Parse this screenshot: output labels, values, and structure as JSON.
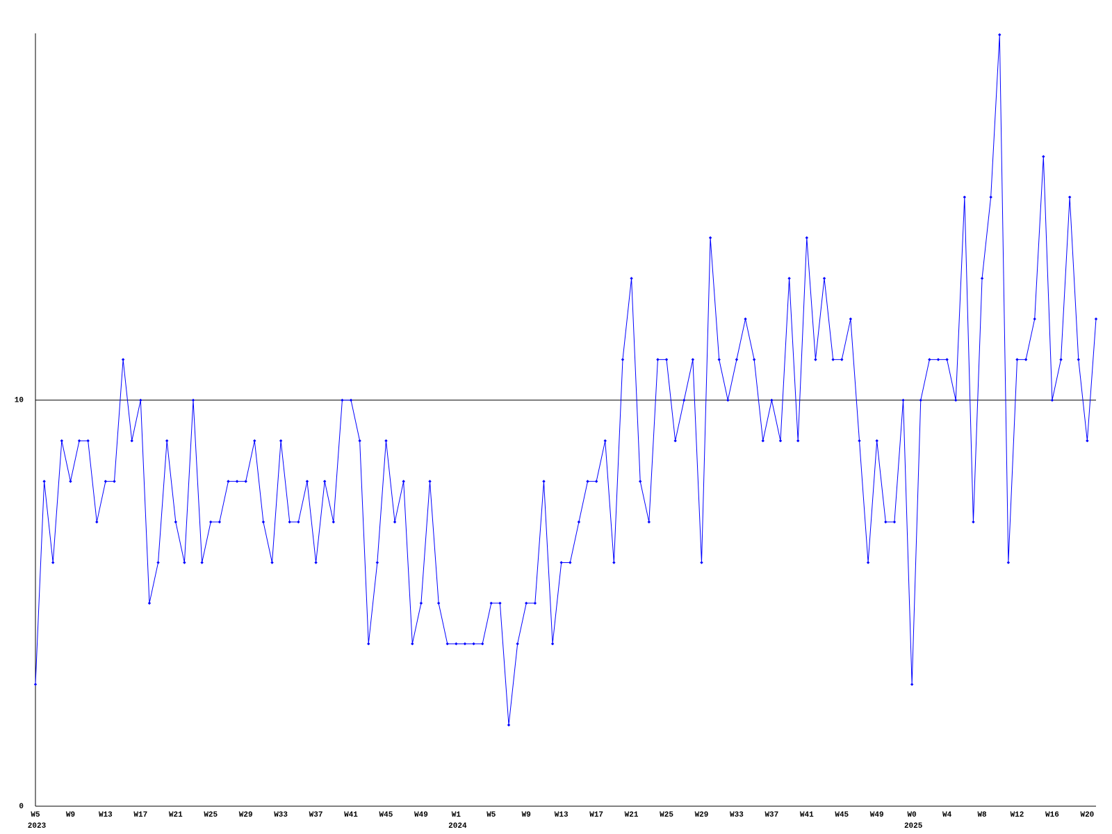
{
  "chart_data": {
    "type": "line",
    "color": "#0000ff",
    "categories": [
      "W5",
      null,
      null,
      null,
      "W9",
      null,
      null,
      null,
      "W13",
      null,
      null,
      null,
      "W17",
      null,
      null,
      null,
      "W21",
      null,
      null,
      null,
      "W25",
      null,
      null,
      null,
      "W29",
      null,
      null,
      null,
      "W33",
      null,
      null,
      null,
      "W37",
      null,
      null,
      null,
      "W41",
      null,
      null,
      null,
      "W45",
      null,
      null,
      null,
      "W49",
      null,
      null,
      null,
      "W1",
      null,
      null,
      null,
      "W5",
      null,
      null,
      null,
      "W9",
      null,
      null,
      null,
      "W13",
      null,
      null,
      null,
      "W17",
      null,
      null,
      null,
      "W21",
      null,
      null,
      null,
      "W25",
      null,
      null,
      null,
      "W29",
      null,
      null,
      null,
      "W33",
      null,
      null,
      null,
      "W37",
      null,
      null,
      null,
      "W41",
      null,
      null,
      null,
      "W45",
      null,
      null,
      null,
      "W49",
      null,
      null,
      null,
      "W0",
      null,
      null,
      null,
      "W4",
      null,
      null,
      null,
      "W8",
      null,
      null,
      null,
      "W12",
      null,
      null,
      null,
      "W16",
      null,
      null,
      null,
      "W20",
      null
    ],
    "x_year_labels": [
      "2023",
      null,
      null,
      null,
      null,
      null,
      null,
      null,
      null,
      null,
      null,
      null,
      null,
      null,
      null,
      null,
      null,
      null,
      null,
      null,
      null,
      null,
      null,
      null,
      null,
      null,
      null,
      null,
      null,
      null,
      null,
      null,
      null,
      null,
      null,
      null,
      null,
      null,
      null,
      null,
      null,
      null,
      null,
      null,
      null,
      null,
      null,
      null,
      "2024",
      null,
      null,
      null,
      null,
      null,
      null,
      null,
      null,
      null,
      null,
      null,
      null,
      null,
      null,
      null,
      null,
      null,
      null,
      null,
      null,
      null,
      null,
      null,
      null,
      null,
      null,
      null,
      null,
      null,
      null,
      null,
      null,
      null,
      null,
      null,
      null,
      null,
      null,
      null,
      null,
      null,
      null,
      null,
      null,
      null,
      null,
      null,
      null,
      null,
      null,
      null,
      "2025",
      null,
      null,
      null,
      null,
      null,
      null,
      null,
      null,
      null,
      null,
      null,
      null,
      null,
      null,
      null,
      null,
      null,
      null,
      null,
      null,
      null
    ],
    "values": [
      3,
      8,
      6,
      9,
      8,
      9,
      9,
      7,
      8,
      8,
      11,
      9,
      10,
      5,
      6,
      9,
      7,
      6,
      10,
      6,
      7,
      7,
      8,
      8,
      8,
      9,
      7,
      6,
      9,
      7,
      7,
      8,
      6,
      8,
      7,
      10,
      10,
      9,
      4,
      6,
      9,
      7,
      8,
      4,
      5,
      8,
      5,
      4,
      4,
      4,
      4,
      4,
      5,
      5,
      2,
      4,
      5,
      5,
      8,
      4,
      6,
      6,
      7,
      8,
      8,
      9,
      6,
      11,
      13,
      8,
      7,
      11,
      11,
      9,
      10,
      11,
      6,
      14,
      11,
      10,
      11,
      12,
      11,
      9,
      10,
      9,
      13,
      9,
      14,
      11,
      13,
      11,
      11,
      12,
      9,
      6,
      9,
      7,
      7,
      10,
      3,
      10,
      11,
      11,
      11,
      10,
      15,
      7,
      13,
      15,
      19,
      6,
      11,
      11,
      12,
      16,
      10,
      11,
      15,
      11,
      9,
      12
    ],
    "ylim": [
      0,
      19
    ],
    "yticks": [
      0,
      10
    ],
    "grid": true
  }
}
